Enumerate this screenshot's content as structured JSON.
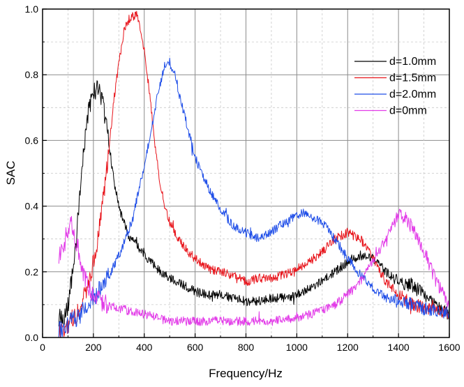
{
  "chart_data": {
    "type": "line",
    "title": "",
    "xlabel": "Frequency/Hz",
    "ylabel": "SAC",
    "xlim": [
      0,
      1600
    ],
    "ylim": [
      0.0,
      1.0
    ],
    "xticks": [
      0,
      200,
      400,
      600,
      800,
      1000,
      1200,
      1400,
      1600
    ],
    "yticks": [
      0.0,
      0.2,
      0.4,
      0.6,
      0.8,
      1.0
    ],
    "xtick_labels": [
      "0",
      "200",
      "400",
      "600",
      "800",
      "1000",
      "1200",
      "1400",
      "1600"
    ],
    "ytick_labels": [
      "0.0",
      "0.2",
      "0.4",
      "0.6",
      "0.8",
      "1.0"
    ],
    "grid": true,
    "legend_position": "top-right",
    "series": [
      {
        "name": "d=1.0mm",
        "color": "#000000",
        "x": [
          64,
          80,
          100,
          120,
          140,
          160,
          180,
          200,
          220,
          240,
          260,
          280,
          300,
          320,
          340,
          360,
          380,
          400,
          450,
          500,
          550,
          600,
          650,
          700,
          750,
          800,
          850,
          900,
          950,
          1000,
          1050,
          1100,
          1150,
          1200,
          1250,
          1300,
          1350,
          1400,
          1450,
          1500,
          1550,
          1600
        ],
        "y": [
          0.06,
          0.05,
          0.1,
          0.2,
          0.37,
          0.55,
          0.69,
          0.75,
          0.76,
          0.7,
          0.6,
          0.48,
          0.4,
          0.35,
          0.31,
          0.29,
          0.27,
          0.25,
          0.21,
          0.18,
          0.16,
          0.14,
          0.13,
          0.13,
          0.12,
          0.11,
          0.11,
          0.12,
          0.12,
          0.13,
          0.15,
          0.17,
          0.2,
          0.23,
          0.25,
          0.24,
          0.2,
          0.17,
          0.16,
          0.13,
          0.09,
          0.07
        ]
      },
      {
        "name": "d=1.5mm",
        "color": "#e8141b",
        "x": [
          64,
          80,
          100,
          120,
          140,
          160,
          180,
          200,
          220,
          240,
          260,
          280,
          300,
          320,
          340,
          360,
          370,
          380,
          400,
          420,
          440,
          460,
          480,
          500,
          550,
          600,
          650,
          700,
          750,
          800,
          850,
          900,
          950,
          1000,
          1050,
          1100,
          1150,
          1200,
          1250,
          1300,
          1350,
          1400,
          1450,
          1500,
          1550,
          1600
        ],
        "y": [
          0.02,
          0.02,
          0.04,
          0.06,
          0.08,
          0.12,
          0.17,
          0.23,
          0.31,
          0.43,
          0.57,
          0.72,
          0.84,
          0.93,
          0.97,
          0.98,
          0.98,
          0.96,
          0.87,
          0.75,
          0.6,
          0.48,
          0.4,
          0.35,
          0.28,
          0.24,
          0.21,
          0.2,
          0.19,
          0.17,
          0.18,
          0.18,
          0.19,
          0.21,
          0.23,
          0.26,
          0.3,
          0.32,
          0.3,
          0.24,
          0.17,
          0.13,
          0.1,
          0.09,
          0.08,
          0.07
        ]
      },
      {
        "name": "d=2.0mm",
        "color": "#1f4ee8",
        "x": [
          64,
          100,
          150,
          200,
          250,
          300,
          350,
          400,
          450,
          480,
          500,
          520,
          550,
          600,
          650,
          700,
          750,
          800,
          850,
          900,
          950,
          1000,
          1030,
          1050,
          1100,
          1150,
          1200,
          1250,
          1300,
          1350,
          1400,
          1450,
          1500,
          1550,
          1600
        ],
        "y": [
          0.02,
          0.04,
          0.07,
          0.12,
          0.17,
          0.25,
          0.35,
          0.52,
          0.73,
          0.83,
          0.84,
          0.8,
          0.7,
          0.55,
          0.46,
          0.39,
          0.34,
          0.32,
          0.3,
          0.32,
          0.35,
          0.37,
          0.38,
          0.37,
          0.35,
          0.3,
          0.24,
          0.19,
          0.15,
          0.12,
          0.11,
          0.1,
          0.09,
          0.08,
          0.08
        ]
      },
      {
        "name": "d=0mm",
        "color": "#e23be8",
        "x": [
          64,
          80,
          100,
          110,
          120,
          140,
          160,
          180,
          200,
          250,
          300,
          350,
          400,
          450,
          500,
          550,
          600,
          700,
          800,
          900,
          1000,
          1050,
          1100,
          1150,
          1200,
          1250,
          1300,
          1350,
          1380,
          1400,
          1420,
          1450,
          1500,
          1550,
          1600
        ],
        "y": [
          0.24,
          0.28,
          0.33,
          0.35,
          0.33,
          0.27,
          0.2,
          0.16,
          0.13,
          0.1,
          0.09,
          0.08,
          0.07,
          0.06,
          0.05,
          0.05,
          0.05,
          0.05,
          0.05,
          0.05,
          0.06,
          0.07,
          0.08,
          0.1,
          0.13,
          0.17,
          0.23,
          0.3,
          0.35,
          0.37,
          0.37,
          0.34,
          0.26,
          0.17,
          0.1
        ]
      }
    ]
  }
}
